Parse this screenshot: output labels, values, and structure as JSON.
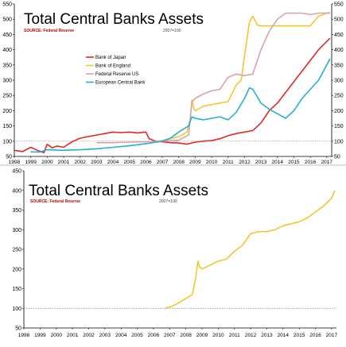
{
  "chart_data": [
    {
      "type": "line",
      "title": "Total Central Banks Assets",
      "source": "SOURCE: Federal Reserve",
      "note": "2007=100",
      "yticks": [
        50,
        100,
        150,
        200,
        250,
        300,
        350,
        400,
        450,
        500,
        550
      ],
      "ylim": [
        50,
        550
      ],
      "xlim": [
        1998,
        2017.3
      ],
      "xticks": [
        "1998",
        "1999",
        "2000",
        "2001",
        "2002",
        "2003",
        "2004",
        "2005",
        "2006",
        "2007",
        "2008",
        "2009",
        "2010",
        "2011",
        "2012",
        "2013",
        "2014",
        "2015",
        "2016",
        "2017"
      ],
      "baseline": 100,
      "grid": false,
      "legend_position": "upper-left",
      "series": [
        {
          "name": "Bank of Japan",
          "color": "#e02828",
          "points": [
            [
              1998,
              70
            ],
            [
              1998.5,
              66
            ],
            [
              1999,
              80
            ],
            [
              1999.4,
              70
            ],
            [
              1999.8,
              62
            ],
            [
              2000,
              90
            ],
            [
              2000.3,
              78
            ],
            [
              2000.6,
              84
            ],
            [
              2001,
              80
            ],
            [
              2001.5,
              98
            ],
            [
              2002,
              110
            ],
            [
              2002.5,
              115
            ],
            [
              2003,
              120
            ],
            [
              2003.5,
              125
            ],
            [
              2004,
              130
            ],
            [
              2004.5,
              128
            ],
            [
              2005,
              130
            ],
            [
              2005.5,
              127
            ],
            [
              2006,
              130
            ],
            [
              2006.2,
              108
            ],
            [
              2006.6,
              100
            ],
            [
              2007,
              98
            ],
            [
              2007.5,
              95
            ],
            [
              2008,
              94
            ],
            [
              2008.5,
              90
            ],
            [
              2009,
              97
            ],
            [
              2009.5,
              100
            ],
            [
              2010,
              102
            ],
            [
              2010.5,
              108
            ],
            [
              2011,
              118
            ],
            [
              2011.5,
              125
            ],
            [
              2012,
              130
            ],
            [
              2012.5,
              135
            ],
            [
              2013,
              160
            ],
            [
              2013.5,
              200
            ],
            [
              2014,
              225
            ],
            [
              2014.5,
              260
            ],
            [
              2015,
              295
            ],
            [
              2015.5,
              330
            ],
            [
              2016,
              365
            ],
            [
              2016.5,
              400
            ],
            [
              2017.2,
              438
            ]
          ]
        },
        {
          "name": "Bank of England",
          "color": "#f2c72e",
          "points": [
            [
              2006.7,
              100
            ],
            [
              2007,
              102
            ],
            [
              2007.5,
              108
            ],
            [
              2008,
              115
            ],
            [
              2008.5,
              130
            ],
            [
              2008.7,
              175
            ],
            [
              2008.8,
              235
            ],
            [
              2008.9,
              210
            ],
            [
              2009,
              200
            ],
            [
              2009.5,
              215
            ],
            [
              2010,
              220
            ],
            [
              2010.5,
              225
            ],
            [
              2011,
              230
            ],
            [
              2011.5,
              285
            ],
            [
              2011.8,
              300
            ],
            [
              2012,
              380
            ],
            [
              2012.3,
              490
            ],
            [
              2012.5,
              510
            ],
            [
              2012.8,
              480
            ],
            [
              2013,
              478
            ],
            [
              2013.5,
              478
            ],
            [
              2014,
              478
            ],
            [
              2014.5,
              478
            ],
            [
              2015,
              478
            ],
            [
              2015.5,
              478
            ],
            [
              2016,
              478
            ],
            [
              2016.5,
              510
            ],
            [
              2017,
              520
            ],
            [
              2017.2,
              522
            ]
          ]
        },
        {
          "name": "Federal Reserve US",
          "color": "#d7a3ab",
          "points": [
            [
              2003,
              95
            ],
            [
              2004,
              95
            ],
            [
              2005,
              97
            ],
            [
              2006,
              98
            ],
            [
              2007,
              100
            ],
            [
              2008,
              103
            ],
            [
              2008.6,
              120
            ],
            [
              2008.8,
              230
            ],
            [
              2009,
              240
            ],
            [
              2009.5,
              255
            ],
            [
              2010,
              265
            ],
            [
              2010.5,
              270
            ],
            [
              2011,
              310
            ],
            [
              2011.5,
              320
            ],
            [
              2012,
              315
            ],
            [
              2012.5,
              320
            ],
            [
              2013,
              400
            ],
            [
              2013.5,
              460
            ],
            [
              2014,
              500
            ],
            [
              2014.5,
              520
            ],
            [
              2015,
              520
            ],
            [
              2015.5,
              520
            ],
            [
              2016,
              515
            ],
            [
              2016.5,
              520
            ],
            [
              2017.2,
              520
            ]
          ]
        },
        {
          "name": "European Central Bank",
          "color": "#24b0cf",
          "points": [
            [
              1999,
              65
            ],
            [
              1999.5,
              64
            ],
            [
              2000,
              72
            ],
            [
              2001,
              70
            ],
            [
              2002,
              72
            ],
            [
              2003,
              75
            ],
            [
              2004,
              80
            ],
            [
              2005,
              85
            ],
            [
              2006,
              92
            ],
            [
              2007,
              100
            ],
            [
              2007.5,
              110
            ],
            [
              2008,
              130
            ],
            [
              2008.6,
              150
            ],
            [
              2008.8,
              180
            ],
            [
              2009,
              175
            ],
            [
              2009.5,
              170
            ],
            [
              2010,
              175
            ],
            [
              2010.5,
              180
            ],
            [
              2011,
              170
            ],
            [
              2011.5,
              195
            ],
            [
              2012,
              240
            ],
            [
              2012.3,
              275
            ],
            [
              2012.5,
              270
            ],
            [
              2013,
              225
            ],
            [
              2013.5,
              205
            ],
            [
              2014,
              190
            ],
            [
              2014.5,
              175
            ],
            [
              2015,
              200
            ],
            [
              2015.5,
              240
            ],
            [
              2016,
              270
            ],
            [
              2016.5,
              300
            ],
            [
              2017,
              350
            ],
            [
              2017.2,
              370
            ]
          ]
        }
      ]
    },
    {
      "type": "line",
      "title": "Total Central Banks Assets",
      "source": "SOURCE: Federal Reserve",
      "note": "2007=100",
      "yticks": [
        50,
        100,
        150,
        200,
        250,
        300,
        350,
        400,
        450
      ],
      "ylim": [
        50,
        450
      ],
      "xlim": [
        1998,
        2017.3
      ],
      "xticks": [
        "1998",
        "1999",
        "2000",
        "2001",
        "2002",
        "2003",
        "2004",
        "2005",
        "2006",
        "2007",
        "2008",
        "2009",
        "2010",
        "2011",
        "2012",
        "2013",
        "2014",
        "2015",
        "2016",
        "2017"
      ],
      "baseline": 100,
      "grid": false,
      "series": [
        {
          "name": "Bank of England",
          "color": "#f2c72e",
          "points": [
            [
              2006.7,
              100
            ],
            [
              2007,
              103
            ],
            [
              2007.5,
              112
            ],
            [
              2008,
              125
            ],
            [
              2008.4,
              135
            ],
            [
              2008.6,
              175
            ],
            [
              2008.75,
              220
            ],
            [
              2008.85,
              205
            ],
            [
              2009,
              200
            ],
            [
              2009.5,
              210
            ],
            [
              2010,
              220
            ],
            [
              2010.5,
              225
            ],
            [
              2011,
              245
            ],
            [
              2011.5,
              260
            ],
            [
              2012,
              290
            ],
            [
              2012.5,
              295
            ],
            [
              2013,
              295
            ],
            [
              2013.5,
              300
            ],
            [
              2014,
              310
            ],
            [
              2014.5,
              315
            ],
            [
              2015,
              320
            ],
            [
              2015.5,
              330
            ],
            [
              2016,
              345
            ],
            [
              2016.5,
              360
            ],
            [
              2017,
              380
            ],
            [
              2017.2,
              400
            ]
          ]
        }
      ]
    }
  ]
}
